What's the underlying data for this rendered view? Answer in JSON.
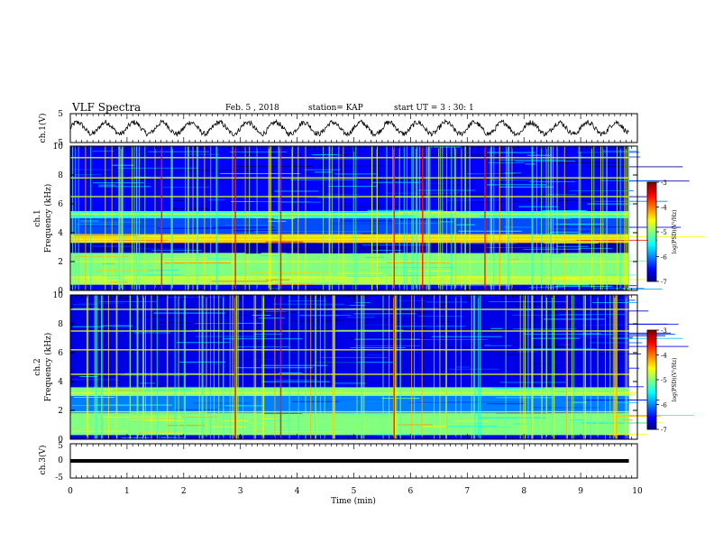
{
  "header": {
    "title": "VLF Spectra",
    "date": "Feb. 5 , 2018",
    "station": "station= KAP",
    "start": "start  UT =   3 : 30: 1"
  },
  "chart_data": [
    {
      "type": "line",
      "panel": "ch1-waveform",
      "ylabel": "ch.1(V)",
      "ylim": [
        -5,
        5
      ],
      "yticks": [
        "5",
        "-5"
      ],
      "xlim": [
        0,
        10
      ],
      "description_series": "oscillating trace around 0 V, amplitude ~2-3 V",
      "approx_period_min": 0.5
    },
    {
      "type": "heatmap",
      "panel": "ch1-spectrogram",
      "ylabel_line1": "ch.1",
      "ylabel_line2": "Frequency (kHz)",
      "ylim": [
        0,
        10
      ],
      "yticks": [
        "0",
        "2",
        "4",
        "6",
        "8",
        "10"
      ],
      "xlim": [
        0,
        9.85
      ],
      "colorbar": {
        "label": "log(PSD)(V²/Hz)",
        "range": [
          -7,
          -3
        ],
        "ticks": [
          "-3",
          "-4",
          "-5",
          "-6",
          "-7"
        ]
      },
      "bands": [
        {
          "f0": 0.0,
          "f1": 0.4,
          "level": -6.5
        },
        {
          "f0": 0.4,
          "f1": 1.0,
          "level": -4.8
        },
        {
          "f0": 1.0,
          "f1": 2.6,
          "level": -5.0
        },
        {
          "f0": 2.6,
          "f1": 3.3,
          "level": -6.8
        },
        {
          "f0": 3.3,
          "f1": 3.9,
          "level": -4.3
        },
        {
          "f0": 3.9,
          "f1": 5.0,
          "level": -6.2
        },
        {
          "f0": 5.0,
          "f1": 5.5,
          "level": -5.3
        },
        {
          "f0": 5.5,
          "f1": 10.0,
          "level": -6.5
        }
      ],
      "lines_khz": [
        0.9,
        2.0,
        3.55,
        3.75,
        5.3,
        6.5,
        7.8,
        9.2
      ],
      "strong_spikes_min": [
        1.6,
        2.9,
        3.7,
        5.7,
        6.2,
        7.3
      ]
    },
    {
      "type": "heatmap",
      "panel": "ch2-spectrogram",
      "ylabel_line1": "ch.2",
      "ylabel_line2": "Frequency (kHz)",
      "ylim": [
        0,
        10
      ],
      "yticks": [
        "0",
        "2",
        "4",
        "6",
        "8",
        "10"
      ],
      "xlim": [
        0,
        9.85
      ],
      "colorbar": {
        "label": "log(PSD)(V²/Hz)",
        "range": [
          -7,
          -3
        ],
        "ticks": [
          "-3",
          "-4",
          "-5",
          "-6",
          "-7"
        ]
      },
      "bands": [
        {
          "f0": 0.0,
          "f1": 0.3,
          "level": -6.5
        },
        {
          "f0": 0.3,
          "f1": 1.8,
          "level": -5.0
        },
        {
          "f0": 1.8,
          "f1": 3.0,
          "level": -6.0
        },
        {
          "f0": 3.0,
          "f1": 3.6,
          "level": -5.0
        },
        {
          "f0": 3.6,
          "f1": 10.0,
          "level": -6.6
        }
      ],
      "lines_khz": [
        1.9,
        3.2,
        4.5,
        6.2,
        7.5,
        9.0
      ],
      "strong_spikes_min": [
        2.9,
        3.7,
        5.7
      ]
    },
    {
      "type": "line",
      "panel": "ch3-waveform",
      "ylabel": "ch.3(V)",
      "ylim": [
        -5,
        5
      ],
      "yticks": [
        "5",
        "0",
        "-5"
      ],
      "xlim": [
        0,
        9.85
      ],
      "constant_value_v": 0
    }
  ],
  "xaxis": {
    "label": "Time  (min)",
    "ticks": [
      "0",
      "1",
      "2",
      "3",
      "4",
      "5",
      "6",
      "7",
      "8",
      "9",
      "10"
    ]
  }
}
